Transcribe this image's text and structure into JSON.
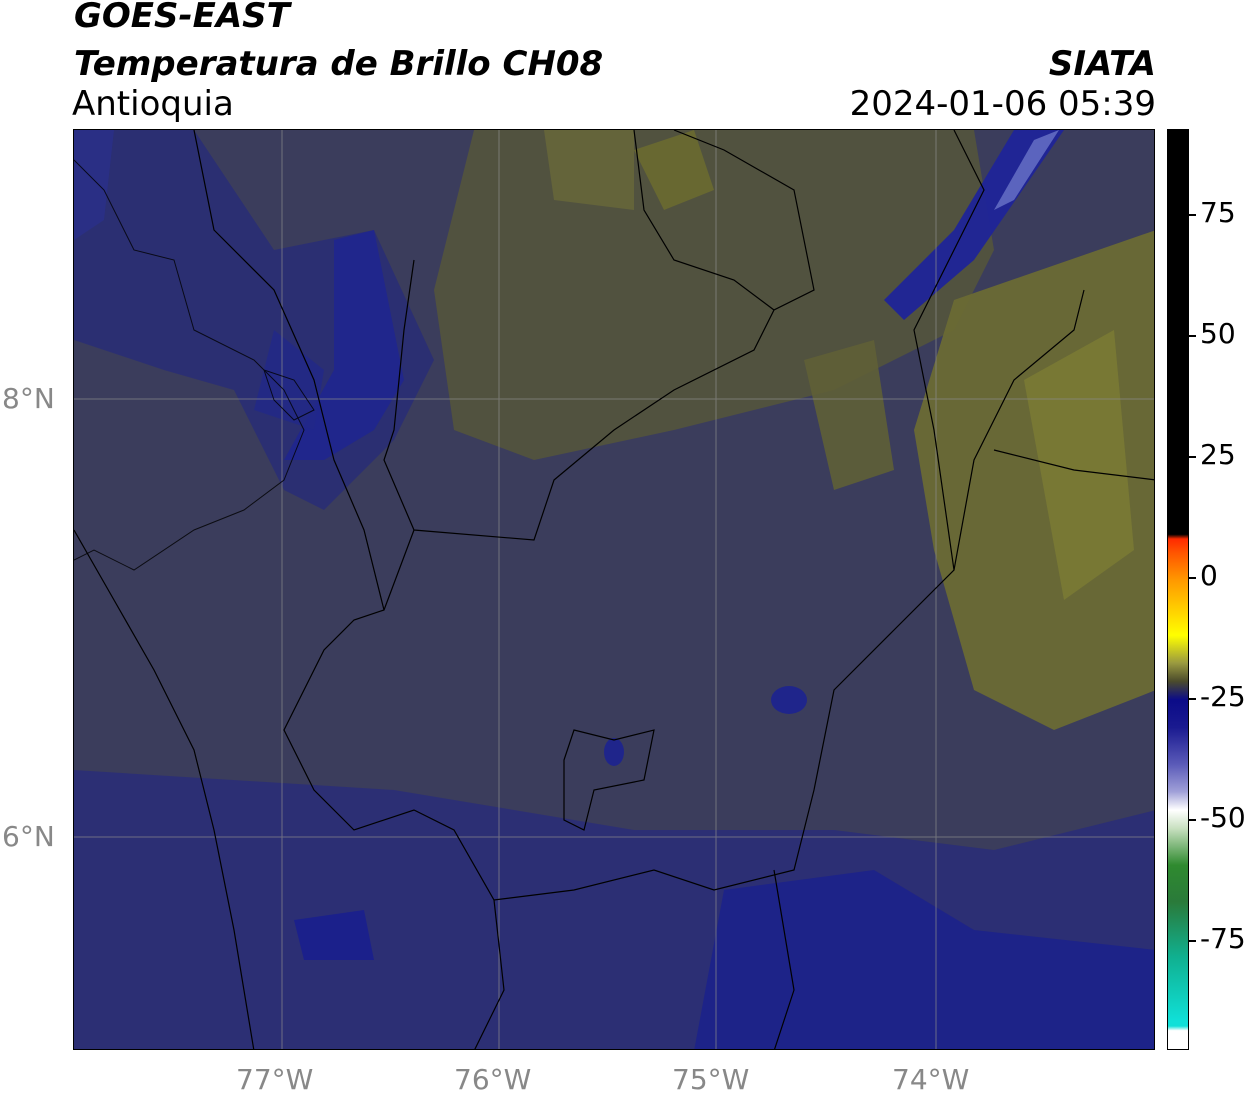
{
  "header": {
    "satellite": "GOES-EAST",
    "product": "Temperatura de Brillo CH08",
    "region": "Antioquia",
    "agency": "SIATA",
    "datetime": "2024-01-06 05:39"
  },
  "map": {
    "lon_ticks": [
      "77°W",
      "76°W",
      "75°W",
      "74°W"
    ],
    "lat_ticks": [
      "8°N",
      "6°N"
    ],
    "gridlines": true
  },
  "colorbar": {
    "ticks": [
      "75",
      "50",
      "25",
      "0",
      "-25",
      "-50",
      "-75"
    ],
    "colors": {
      "warm_black": "#000000",
      "red": "#ff2a00",
      "orange": "#ff9900",
      "yellow": "#ffff00",
      "olive": "#4b4b2c",
      "navy": "#0b0b88",
      "white": "#ffffff",
      "green": "#2f8a2f",
      "cyan": "#10e0d8"
    }
  },
  "colors": {
    "background_field": "#3c3e5a",
    "olive_field": "#5c5c36",
    "blue_field": "#23287a",
    "border": "#000000",
    "grid": "#8a8a8a"
  }
}
